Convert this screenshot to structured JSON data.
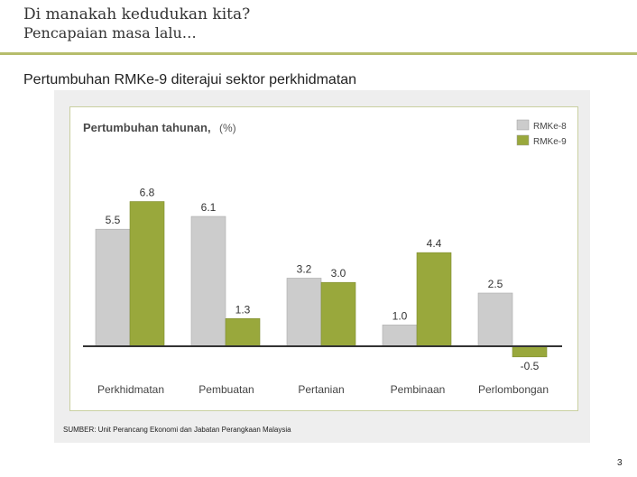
{
  "slide": {
    "title": "Di manakah kedudukan kita?",
    "subtitle": "Pencapaian masa lalu…",
    "heading": "Pertumbuhan RMKe-9 diterajui sektor perkhidmatan",
    "source": "SUMBER: Unit Perancang Ekonomi dan Jabatan Perangkaan Malaysia",
    "page_number": "3"
  },
  "colors": {
    "accent_rule": "#b6bd6c",
    "panel_bg": "#eeeeee",
    "chart_border": "#c9cfa0"
  },
  "chart_data": {
    "type": "bar",
    "title": "Pertumbuhan tahunan,",
    "subtitle": "(%)",
    "categories": [
      "Perkhidmatan",
      "Pembuatan",
      "Pertanian",
      "Pembinaan",
      "Perlombongan"
    ],
    "series": [
      {
        "name": "RMKe-8",
        "values": [
          5.5,
          6.1,
          3.2,
          1.0,
          2.5
        ],
        "labels": [
          "5.5",
          "6.1",
          "3.2",
          "1.0",
          "2.5"
        ],
        "color": "#cccccc"
      },
      {
        "name": "RMKe-9",
        "values": [
          6.8,
          1.3,
          3.0,
          4.4,
          -0.5
        ],
        "labels": [
          "6.8",
          "1.3",
          "3.0",
          "4.4",
          "-0.5"
        ],
        "color": "#99a83c"
      }
    ],
    "ylim": [
      -0.6,
      7.2
    ],
    "legend_position": "top-right",
    "grid": false,
    "data_labels": true
  }
}
